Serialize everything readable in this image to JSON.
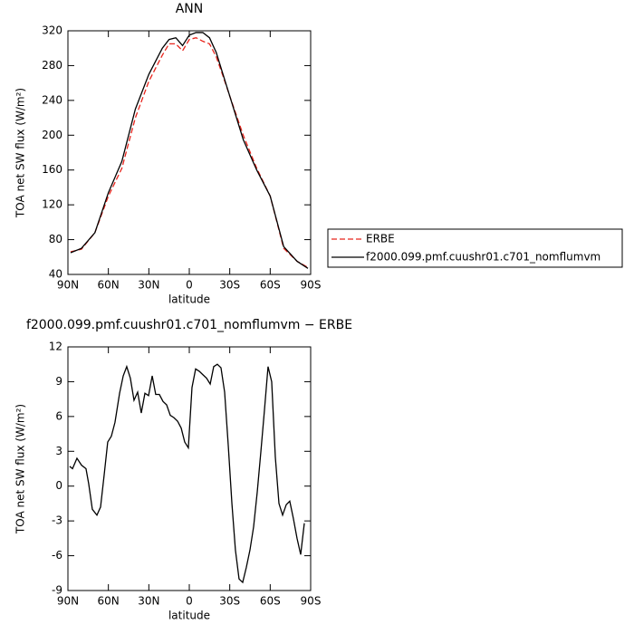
{
  "chart_data": [
    {
      "type": "line",
      "title": "ANN",
      "xlabel": "latitude",
      "ylabel": "TOA net SW flux (W/m²)",
      "x": [
        88,
        80,
        70,
        60,
        50,
        40,
        30,
        20,
        15,
        10,
        5,
        0,
        -5,
        -10,
        -15,
        -20,
        -25,
        -30,
        -40,
        -50,
        -60,
        -70,
        -80,
        -88
      ],
      "series": [
        {
          "name": "ERBE",
          "color": "#e8241c",
          "dash": true,
          "values": [
            66,
            69,
            88,
            130,
            162,
            220,
            262,
            292,
            305,
            305,
            297,
            310,
            312,
            308,
            305,
            290,
            268,
            245,
            200,
            162,
            130,
            70,
            55,
            48
          ]
        },
        {
          "name": "f2000.099.pmf.cuushr01.c701_nomflumvm",
          "color": "#000000",
          "dash": false,
          "values": [
            65,
            70,
            88,
            134,
            170,
            230,
            270,
            300,
            310,
            312,
            303,
            315,
            318,
            318,
            312,
            295,
            270,
            245,
            195,
            160,
            130,
            72,
            55,
            47
          ]
        }
      ],
      "xlim": [
        90,
        -90
      ],
      "xticks": [
        {
          "value": 90,
          "label": "90N"
        },
        {
          "value": 60,
          "label": "60N"
        },
        {
          "value": 30,
          "label": "30N"
        },
        0,
        {
          "value": -30,
          "label": "30S"
        },
        {
          "value": -60,
          "label": "60S"
        },
        {
          "value": -90,
          "label": "90S"
        }
      ],
      "ylim": [
        40,
        320
      ],
      "yticks": [
        40,
        80,
        120,
        160,
        200,
        240,
        280,
        320
      ],
      "legend": "right"
    },
    {
      "type": "line",
      "title": "f2000.099.pmf.cuushr01.c701_nomflumvm − ERBE",
      "xlabel": "latitude",
      "ylabel": "TOA net SW flux (W/m²)",
      "x": [
        88.7,
        86.6,
        83.3,
        79.9,
        76.6,
        74.6,
        71.9,
        68.5,
        65.8,
        63.1,
        60.5,
        57.8,
        55.1,
        51.7,
        49.0,
        46.4,
        43.7,
        41.0,
        38.3,
        35.6,
        32.9,
        30.2,
        27.5,
        24.9,
        22.2,
        19.5,
        16.8,
        14.1,
        11.4,
        8.7,
        6.0,
        3.4,
        0.7,
        -2.0,
        -4.7,
        -7.4,
        -10.1,
        -12.8,
        -15.5,
        -18.1,
        -20.8,
        -23.5,
        -26.2,
        -28.9,
        -31.6,
        -34.2,
        -36.9,
        -39.6,
        -42.3,
        -45.0,
        -47.7,
        -50.4,
        -53.1,
        -55.7,
        -58.4,
        -61.1,
        -63.8,
        -66.5,
        -69.2,
        -71.9,
        -74.5,
        -77.2,
        -79.9,
        -82.6,
        -85.3
      ],
      "series": [
        {
          "color": "#000000",
          "dash": false,
          "values": [
            1.7,
            1.5,
            2.4,
            1.8,
            1.5,
            0.2,
            -2.0,
            -2.5,
            -1.8,
            1.0,
            3.8,
            4.3,
            5.5,
            8.0,
            9.5,
            10.3,
            9.3,
            7.4,
            8.1,
            6.3,
            8.0,
            7.8,
            9.5,
            7.9,
            7.9,
            7.3,
            7.0,
            6.1,
            5.9,
            5.6,
            5.0,
            3.8,
            3.3,
            8.5,
            10.1,
            9.9,
            9.6,
            9.3,
            8.8,
            10.3,
            10.5,
            10.2,
            8.1,
            3.5,
            -1.5,
            -5.5,
            -8.0,
            -8.3,
            -7.0,
            -5.5,
            -3.5,
            -0.5,
            3.0,
            6.5,
            10.3,
            9.0,
            2.5,
            -1.5,
            -2.5,
            -1.6,
            -1.3,
            -2.8,
            -4.5,
            -5.9,
            -3.2
          ]
        }
      ],
      "xlim": [
        90,
        -90
      ],
      "xticks": [
        {
          "value": 90,
          "label": "90N"
        },
        {
          "value": 60,
          "label": "60N"
        },
        {
          "value": 30,
          "label": "30N"
        },
        0,
        {
          "value": -30,
          "label": "30S"
        },
        {
          "value": -60,
          "label": "60S"
        },
        {
          "value": -90,
          "label": "90S"
        }
      ],
      "ylim": [
        -9,
        12
      ],
      "yticks": [
        -9,
        -6,
        -3,
        0,
        3,
        6,
        9,
        12
      ]
    }
  ]
}
